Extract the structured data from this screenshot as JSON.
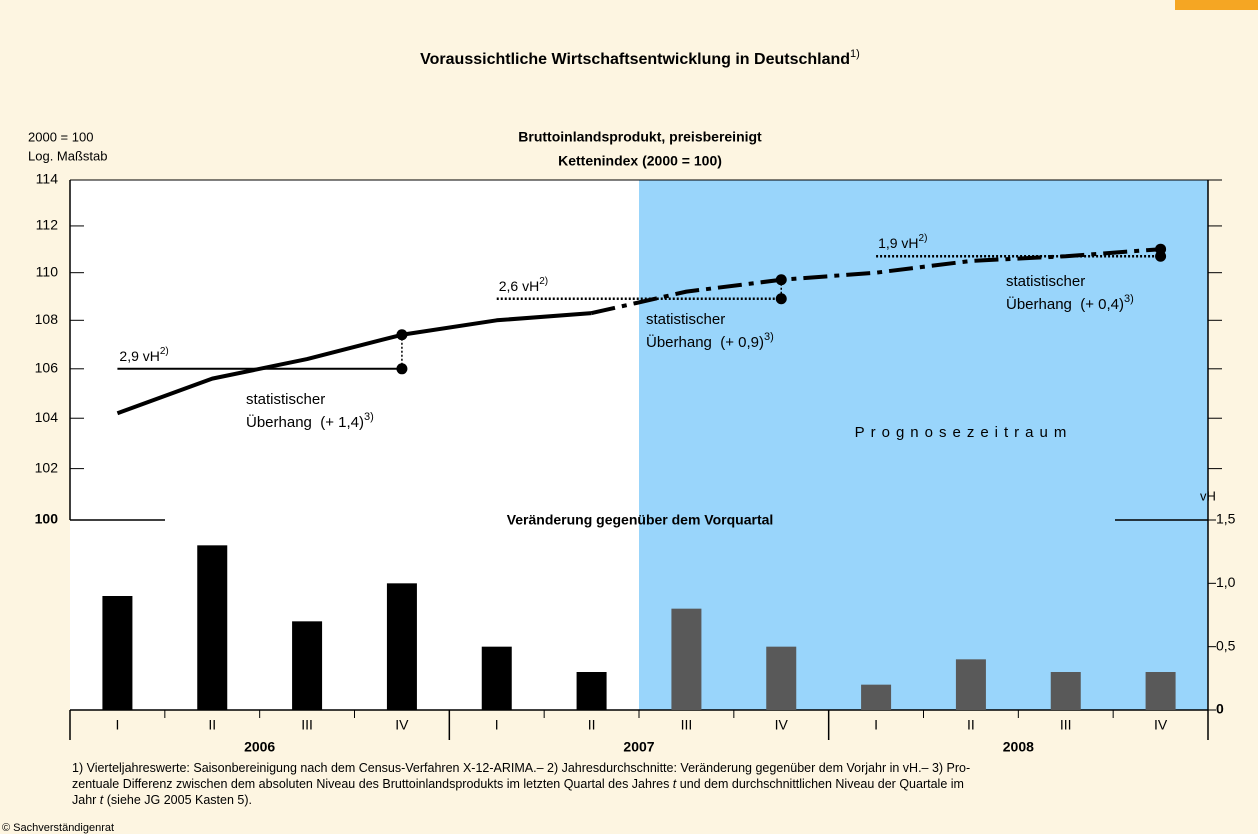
{
  "title": "Voraussichtliche Wirtschaftsentwicklung in Deutschland",
  "title_note": "1)",
  "chart_data": [
    {
      "type": "line",
      "title": "Bruttoinlandsprodukt, preisbereinigt",
      "subtitle": "Kettenindex (2000 = 100)",
      "y_label": [
        "2000 = 100",
        "Log. Maßstab"
      ],
      "log_scale": true,
      "categories": [
        "I",
        "II",
        "III",
        "IV",
        "I",
        "II",
        "III",
        "IV",
        "I",
        "II",
        "III",
        "IV"
      ],
      "years": [
        "2006",
        "2007",
        "2008"
      ],
      "ylim": [
        100,
        114
      ],
      "yticks": [
        100,
        102,
        104,
        106,
        108,
        110,
        112,
        114
      ],
      "series": [
        {
          "color": "#000000",
          "style": "solid",
          "values": [
            104.2,
            105.6,
            106.4,
            107.4,
            108.0,
            108.3,
            null,
            null,
            null,
            null,
            null,
            null
          ]
        },
        {
          "color": "#000000",
          "style": "dashdot",
          "values": [
            null,
            null,
            null,
            null,
            null,
            108.3,
            109.2,
            109.7,
            110.0,
            110.5,
            110.7,
            111.0
          ]
        }
      ],
      "shaded_label": "Prognosezeitraum",
      "annotations": [
        {
          "label": "2,9 vH",
          "note": "2)",
          "value": 106.0,
          "style": "solid",
          "text": [
            "statistischer",
            "Überhang  (+ 1,4)"
          ],
          "text_note": "3)"
        },
        {
          "label": "2,6 vH",
          "note": "2)",
          "value": 108.9,
          "style": "dotted",
          "text": [
            "statistischer",
            "Überhang  (+ 0,9)"
          ],
          "text_note": "3)"
        },
        {
          "label": "1,9 vH",
          "note": "2)",
          "value": 110.7,
          "style": "dotted",
          "text": [
            "statistischer",
            "Überhang  (+ 0,4)"
          ],
          "text_note": "3)"
        }
      ]
    },
    {
      "type": "bar",
      "title": "Veränderung gegenüber dem Vorquartal",
      "y_label": "vH",
      "ylim": [
        0,
        1.5
      ],
      "yticks": [
        0,
        {
          "value": 0.5,
          "label": "0,5"
        },
        {
          "value": 1.0,
          "label": "1,0"
        },
        {
          "value": 1.5,
          "label": "1,5"
        }
      ],
      "series": [
        {
          "color": "#000000",
          "values": [
            0.9,
            1.3,
            0.7,
            1.0,
            0.5,
            0.3,
            null,
            null,
            null,
            null,
            null,
            null
          ]
        },
        {
          "color": "#595959",
          "values": [
            null,
            null,
            null,
            null,
            null,
            null,
            0.8,
            0.5,
            0.2,
            0.4,
            0.3,
            0.3
          ]
        }
      ]
    }
  ],
  "footnotes": [
    [
      "1) Vierteljahreswerte: Saisonbereinigung nach dem Census-Verfahren X-12-ARIMA.– 2) Jahresdurchschnitte: Veränderung gegenüber dem Vorjahr in vH.– 3) Pro-"
    ],
    [
      "zentuale Differenz zwischen dem absoluten Niveau des Bruttoinlandsprodukts im letzten Quartal des Jahres ",
      "t",
      " und dem durchschnittlichen Niveau der Quartale im"
    ],
    [
      "Jahr ",
      "t",
      " (siehe JG 2005 Kasten 5)."
    ]
  ],
  "copyright": "© Sachverständigenrat"
}
